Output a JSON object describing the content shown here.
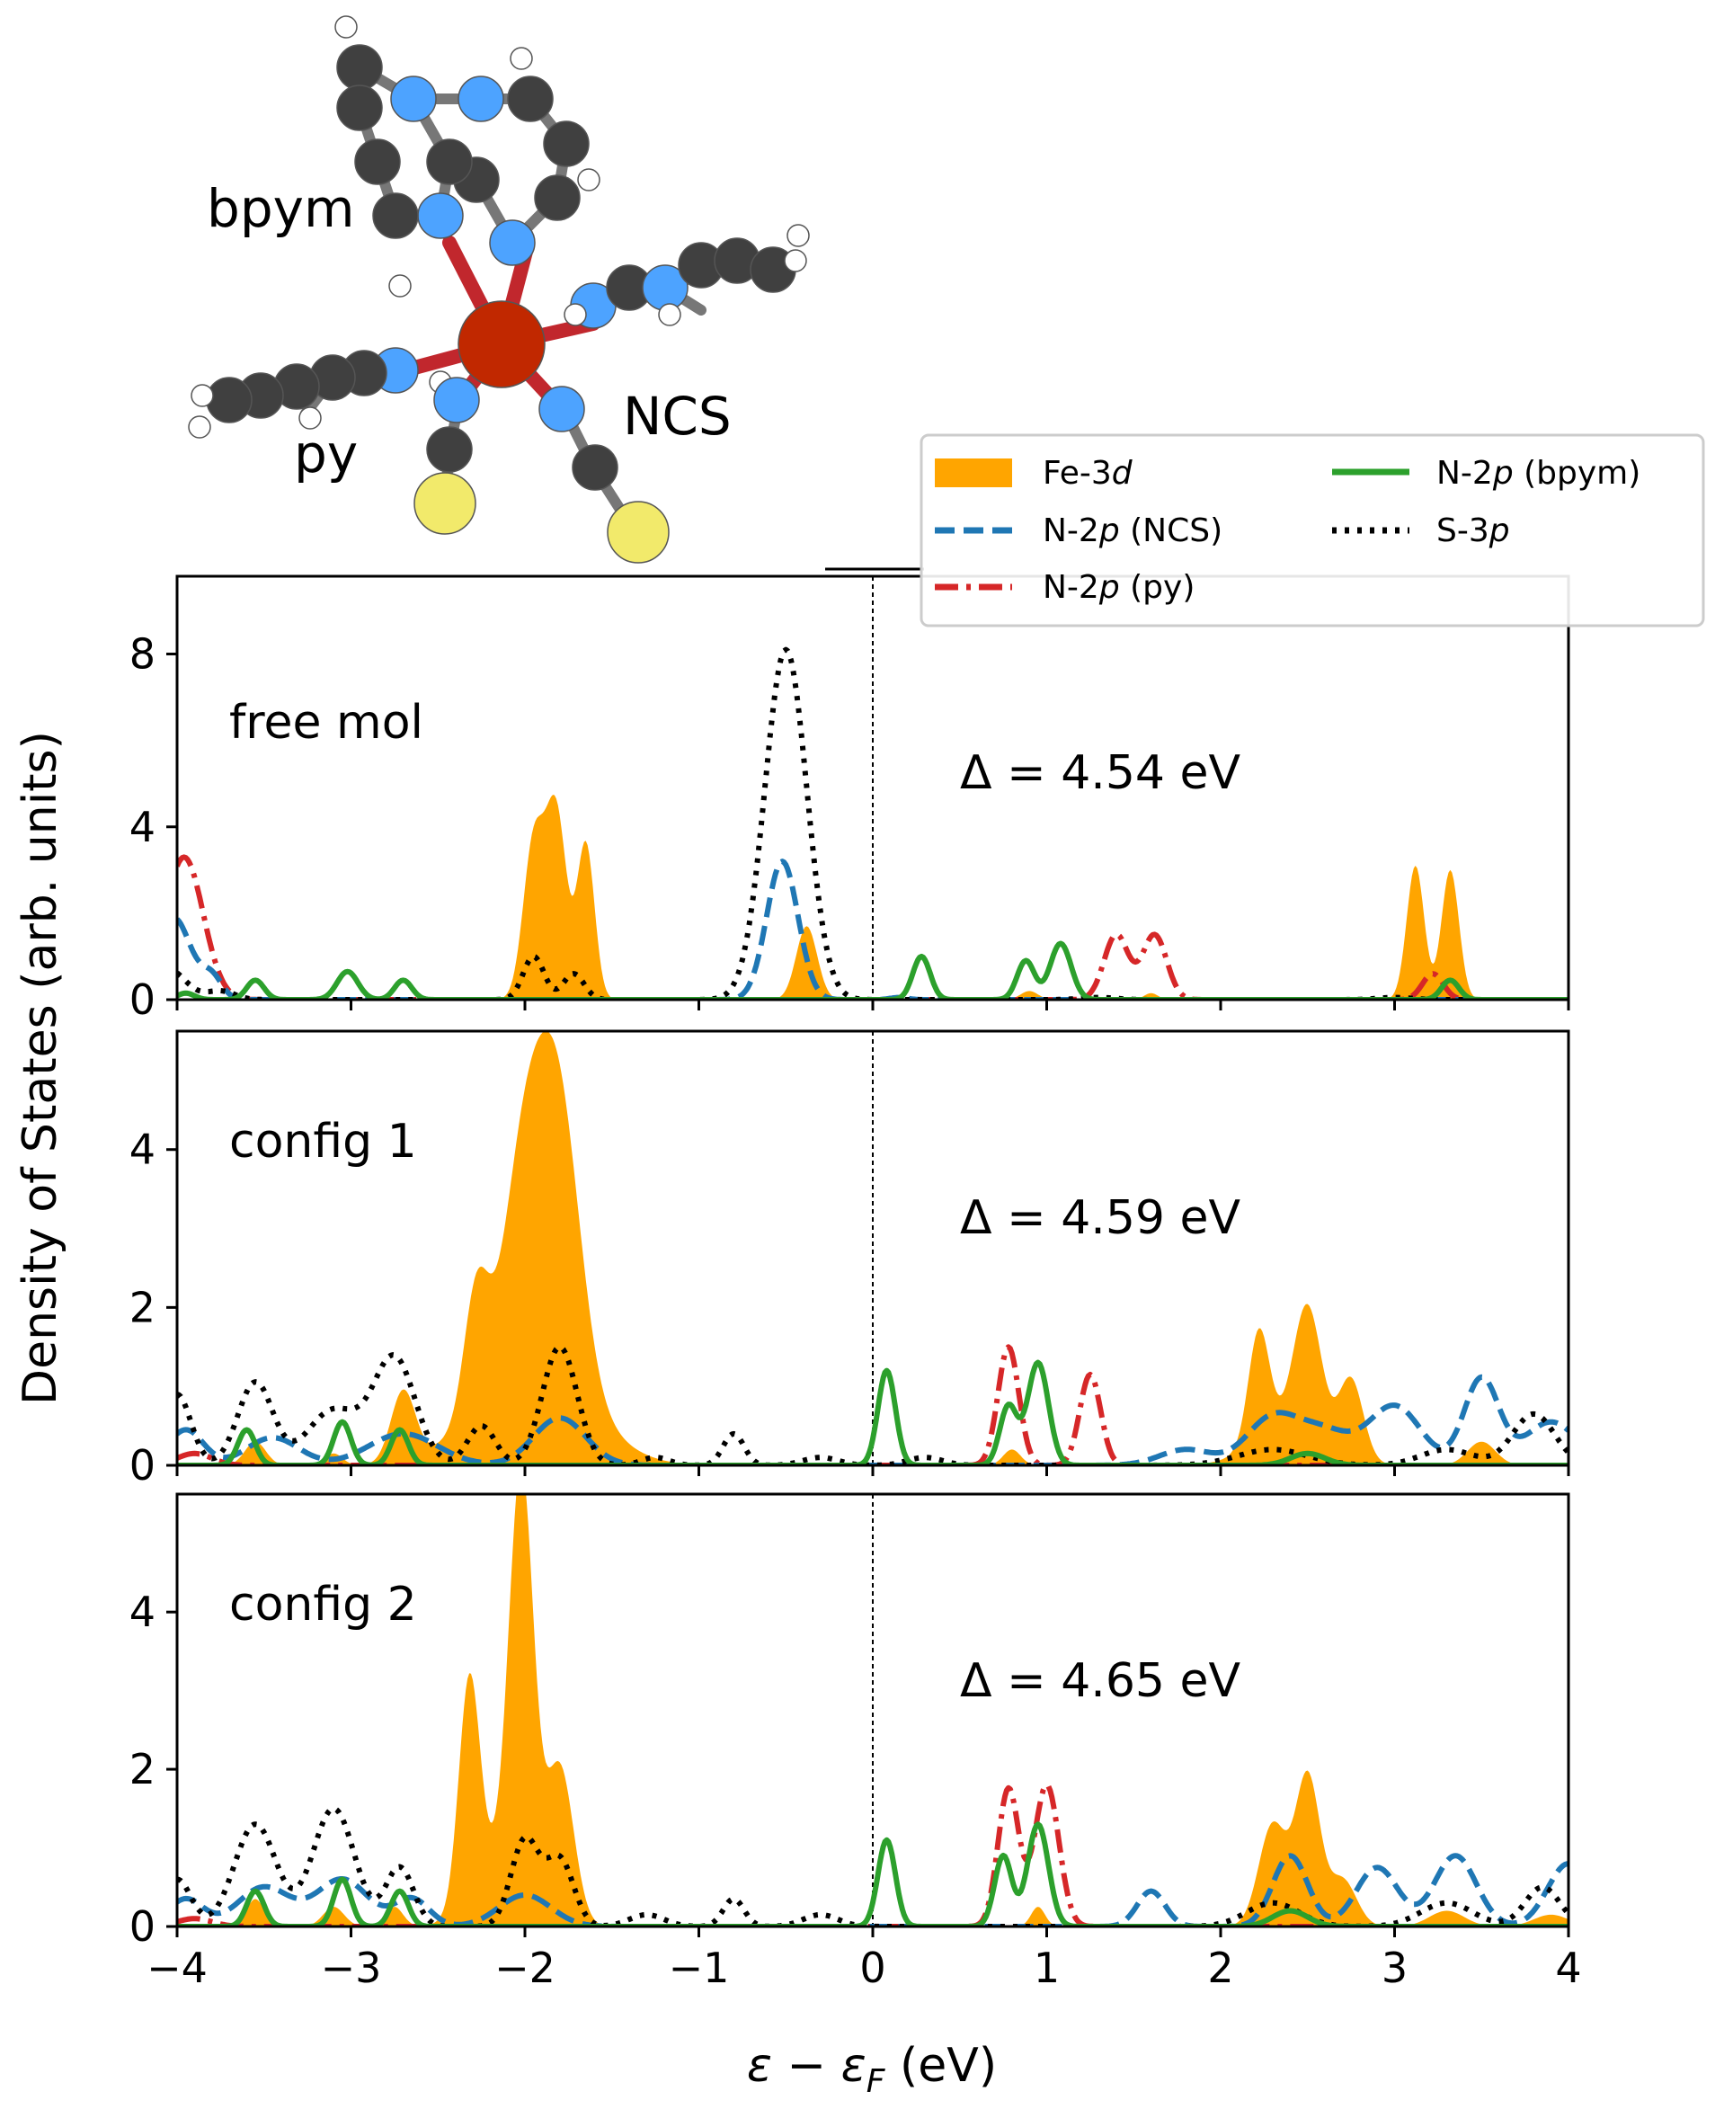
{
  "molecule": {
    "labels": {
      "bpym": "bpym",
      "py": "py",
      "ncs": "NCS"
    }
  },
  "legend": {
    "items": [
      {
        "key": "fe3d",
        "label_main": "Fe-3",
        "label_sub": "d",
        "label_tail": "",
        "style": "fill",
        "color": "#ffa500"
      },
      {
        "key": "n2p_ncs",
        "label_main": "N-2",
        "label_sub": "p",
        "label_tail": " (NCS)",
        "style": "dashed",
        "color": "#1f77b4"
      },
      {
        "key": "n2p_py",
        "label_main": "N-2",
        "label_sub": "p",
        "label_tail": " (py)",
        "style": "dashdot",
        "color": "#d62728"
      },
      {
        "key": "n2p_bpym",
        "label_main": "N-2",
        "label_sub": "p",
        "label_tail": " (bpym)",
        "style": "solid",
        "color": "#2ca02c"
      },
      {
        "key": "s3p",
        "label_main": "S-3",
        "label_sub": "p",
        "label_tail": "",
        "style": "dotted",
        "color": "#000000"
      }
    ]
  },
  "axes": {
    "ylabel": "Density of States (arb. units)",
    "xlabel_main": "ε − ε",
    "xlabel_sub": "F",
    "xlabel_unit": " (eV)",
    "xticks": [
      "−4",
      "−3",
      "−2",
      "−1",
      "0",
      "1",
      "2",
      "3",
      "4"
    ]
  },
  "chart_data": [
    {
      "type": "area",
      "panel": "free mol",
      "annotation": "Δ =  4.54 eV",
      "xlim": [
        -4,
        4
      ],
      "ylim": [
        0,
        9.8
      ],
      "yticks": [
        {
          "v": 0,
          "label": "0"
        },
        {
          "v": 4,
          "label": "4"
        },
        {
          "v": 8,
          "label": "8"
        }
      ],
      "series": [
        {
          "name": "Fe-3d",
          "peaks": [
            [
              -1.95,
              3.6,
              0.06
            ],
            [
              -1.82,
              4.3,
              0.06
            ],
            [
              -1.65,
              3.6,
              0.05
            ],
            [
              -0.38,
              1.7,
              0.06
            ],
            [
              0.9,
              0.2,
              0.05
            ],
            [
              1.6,
              0.15,
              0.04
            ],
            [
              3.12,
              3.1,
              0.05
            ],
            [
              3.32,
              3.0,
              0.05
            ]
          ]
        },
        {
          "name": "N-2p (NCS)",
          "peaks": [
            [
              -4.02,
              1.9,
              0.1
            ],
            [
              -3.8,
              0.5,
              0.06
            ],
            [
              -0.52,
              3.2,
              0.09
            ],
            [
              0.15,
              0.05,
              0.05
            ]
          ]
        },
        {
          "name": "N-2p (py)",
          "peaks": [
            [
              -3.96,
              3.3,
              0.11
            ],
            [
              1.4,
              1.5,
              0.07
            ],
            [
              1.62,
              1.5,
              0.07
            ],
            [
              3.22,
              0.6,
              0.06
            ]
          ]
        },
        {
          "name": "N-2p (bpym)",
          "peaks": [
            [
              -3.55,
              0.45,
              0.05
            ],
            [
              -3.02,
              0.65,
              0.06
            ],
            [
              -2.7,
              0.45,
              0.05
            ],
            [
              -3.95,
              0.15,
              0.05
            ],
            [
              0.28,
              1.0,
              0.05
            ],
            [
              0.88,
              0.9,
              0.05
            ],
            [
              1.08,
              1.3,
              0.06
            ],
            [
              3.32,
              0.45,
              0.05
            ]
          ]
        },
        {
          "name": "S-3p",
          "peaks": [
            [
              -4.05,
              0.7,
              0.1
            ],
            [
              -3.75,
              0.2,
              0.08
            ],
            [
              -1.95,
              1.0,
              0.06
            ],
            [
              -1.72,
              0.6,
              0.06
            ],
            [
              -0.5,
              8.1,
              0.12
            ],
            [
              1.3,
              0.05,
              0.1
            ],
            [
              3.0,
              0.05,
              0.1
            ]
          ]
        }
      ]
    },
    {
      "type": "area",
      "panel": "config 1",
      "annotation": "Δ =  4.59 eV",
      "xlim": [
        -4,
        4
      ],
      "ylim": [
        0,
        5.5
      ],
      "yticks": [
        {
          "v": 0,
          "label": "0"
        },
        {
          "v": 2,
          "label": "2"
        },
        {
          "v": 4,
          "label": "4"
        }
      ],
      "series": [
        {
          "name": "Fe-3d",
          "peaks": [
            [
              -3.55,
              0.3,
              0.06
            ],
            [
              -3.1,
              0.15,
              0.05
            ],
            [
              -2.7,
              0.9,
              0.07
            ],
            [
              -2.28,
              1.5,
              0.07
            ],
            [
              -2.0,
              2.6,
              0.12
            ],
            [
              -1.8,
              3.2,
              0.12
            ],
            [
              -1.95,
              1.4,
              0.3
            ],
            [
              2.22,
              1.4,
              0.06
            ],
            [
              2.5,
              1.6,
              0.08
            ],
            [
              2.75,
              1.0,
              0.07
            ],
            [
              2.4,
              0.5,
              0.2
            ],
            [
              3.5,
              0.3,
              0.08
            ],
            [
              0.8,
              0.2,
              0.05
            ]
          ]
        },
        {
          "name": "N-2p (NCS)",
          "peaks": [
            [
              -3.95,
              0.45,
              0.1
            ],
            [
              -3.45,
              0.35,
              0.15
            ],
            [
              -2.7,
              0.4,
              0.2
            ],
            [
              -1.8,
              0.6,
              0.15
            ],
            [
              2.3,
              0.6,
              0.15
            ],
            [
              2.6,
              0.4,
              0.15
            ],
            [
              3.0,
              0.75,
              0.15
            ],
            [
              3.5,
              1.1,
              0.1
            ],
            [
              3.9,
              0.55,
              0.15
            ],
            [
              1.8,
              0.2,
              0.15
            ]
          ]
        },
        {
          "name": "N-2p (py)",
          "peaks": [
            [
              -3.9,
              0.15,
              0.1
            ],
            [
              0.78,
              1.5,
              0.06
            ],
            [
              1.25,
              1.15,
              0.06
            ]
          ]
        },
        {
          "name": "N-2p (bpym)",
          "peaks": [
            [
              -3.6,
              0.45,
              0.05
            ],
            [
              -3.05,
              0.55,
              0.05
            ],
            [
              -2.72,
              0.45,
              0.05
            ],
            [
              0.08,
              1.2,
              0.05
            ],
            [
              0.78,
              0.75,
              0.05
            ],
            [
              0.95,
              1.3,
              0.06
            ],
            [
              2.5,
              0.15,
              0.1
            ]
          ]
        },
        {
          "name": "S-3p",
          "peaks": [
            [
              -4.0,
              0.9,
              0.08
            ],
            [
              -3.55,
              1.05,
              0.1
            ],
            [
              -3.1,
              0.7,
              0.15
            ],
            [
              -2.75,
              1.35,
              0.12
            ],
            [
              -2.25,
              0.5,
              0.08
            ],
            [
              -1.8,
              1.5,
              0.1
            ],
            [
              -1.25,
              0.1,
              0.08
            ],
            [
              -0.8,
              0.4,
              0.06
            ],
            [
              -0.3,
              0.1,
              0.1
            ],
            [
              0.3,
              0.1,
              0.1
            ],
            [
              2.3,
              0.2,
              0.2
            ],
            [
              3.3,
              0.2,
              0.15
            ],
            [
              3.8,
              0.65,
              0.12
            ]
          ]
        }
      ]
    },
    {
      "type": "area",
      "panel": "config 2",
      "annotation": "Δ =  4.65 eV",
      "xlim": [
        -4,
        4
      ],
      "ylim": [
        0,
        5.5
      ],
      "yticks": [
        {
          "v": 0,
          "label": "0"
        },
        {
          "v": 2,
          "label": "2"
        },
        {
          "v": 4,
          "label": "4"
        }
      ],
      "series": [
        {
          "name": "Fe-3d",
          "peaks": [
            [
              -3.55,
              0.35,
              0.05
            ],
            [
              -3.1,
              0.25,
              0.06
            ],
            [
              -2.75,
              0.25,
              0.05
            ],
            [
              -2.32,
              2.8,
              0.06
            ],
            [
              -2.02,
              5.3,
              0.07
            ],
            [
              -1.8,
              2.0,
              0.08
            ],
            [
              -2.15,
              0.8,
              0.15
            ],
            [
              2.3,
              1.3,
              0.08
            ],
            [
              2.5,
              1.9,
              0.07
            ],
            [
              2.7,
              0.6,
              0.08
            ],
            [
              3.3,
              0.2,
              0.1
            ],
            [
              3.9,
              0.15,
              0.1
            ],
            [
              0.95,
              0.25,
              0.04
            ]
          ]
        },
        {
          "name": "N-2p (NCS)",
          "peaks": [
            [
              -3.95,
              0.35,
              0.1
            ],
            [
              -3.5,
              0.5,
              0.15
            ],
            [
              -3.05,
              0.6,
              0.15
            ],
            [
              -2.65,
              0.35,
              0.1
            ],
            [
              -2.0,
              0.4,
              0.15
            ],
            [
              1.6,
              0.45,
              0.08
            ],
            [
              2.4,
              0.9,
              0.1
            ],
            [
              2.9,
              0.75,
              0.12
            ],
            [
              3.35,
              0.9,
              0.12
            ],
            [
              4.0,
              0.8,
              0.12
            ]
          ]
        },
        {
          "name": "N-2p (py)",
          "peaks": [
            [
              -3.9,
              0.1,
              0.1
            ],
            [
              0.78,
              1.75,
              0.06
            ],
            [
              1.0,
              1.8,
              0.07
            ]
          ]
        },
        {
          "name": "N-2p (bpym)",
          "peaks": [
            [
              -3.55,
              0.45,
              0.05
            ],
            [
              -3.05,
              0.6,
              0.05
            ],
            [
              -2.72,
              0.45,
              0.05
            ],
            [
              0.08,
              1.1,
              0.05
            ],
            [
              0.75,
              0.9,
              0.05
            ],
            [
              0.95,
              1.3,
              0.06
            ],
            [
              2.4,
              0.2,
              0.1
            ]
          ]
        },
        {
          "name": "S-3p",
          "peaks": [
            [
              -4.0,
              0.6,
              0.08
            ],
            [
              -3.55,
              1.3,
              0.12
            ],
            [
              -3.1,
              1.5,
              0.12
            ],
            [
              -2.72,
              0.75,
              0.08
            ],
            [
              -2.0,
              1.1,
              0.08
            ],
            [
              -1.8,
              0.85,
              0.08
            ],
            [
              -1.3,
              0.15,
              0.1
            ],
            [
              -0.8,
              0.35,
              0.06
            ],
            [
              -0.3,
              0.15,
              0.1
            ],
            [
              2.3,
              0.3,
              0.15
            ],
            [
              3.3,
              0.3,
              0.15
            ],
            [
              3.85,
              0.5,
              0.1
            ]
          ]
        }
      ]
    }
  ],
  "colors": {
    "axis": "#000000",
    "background": "#ffffff"
  }
}
